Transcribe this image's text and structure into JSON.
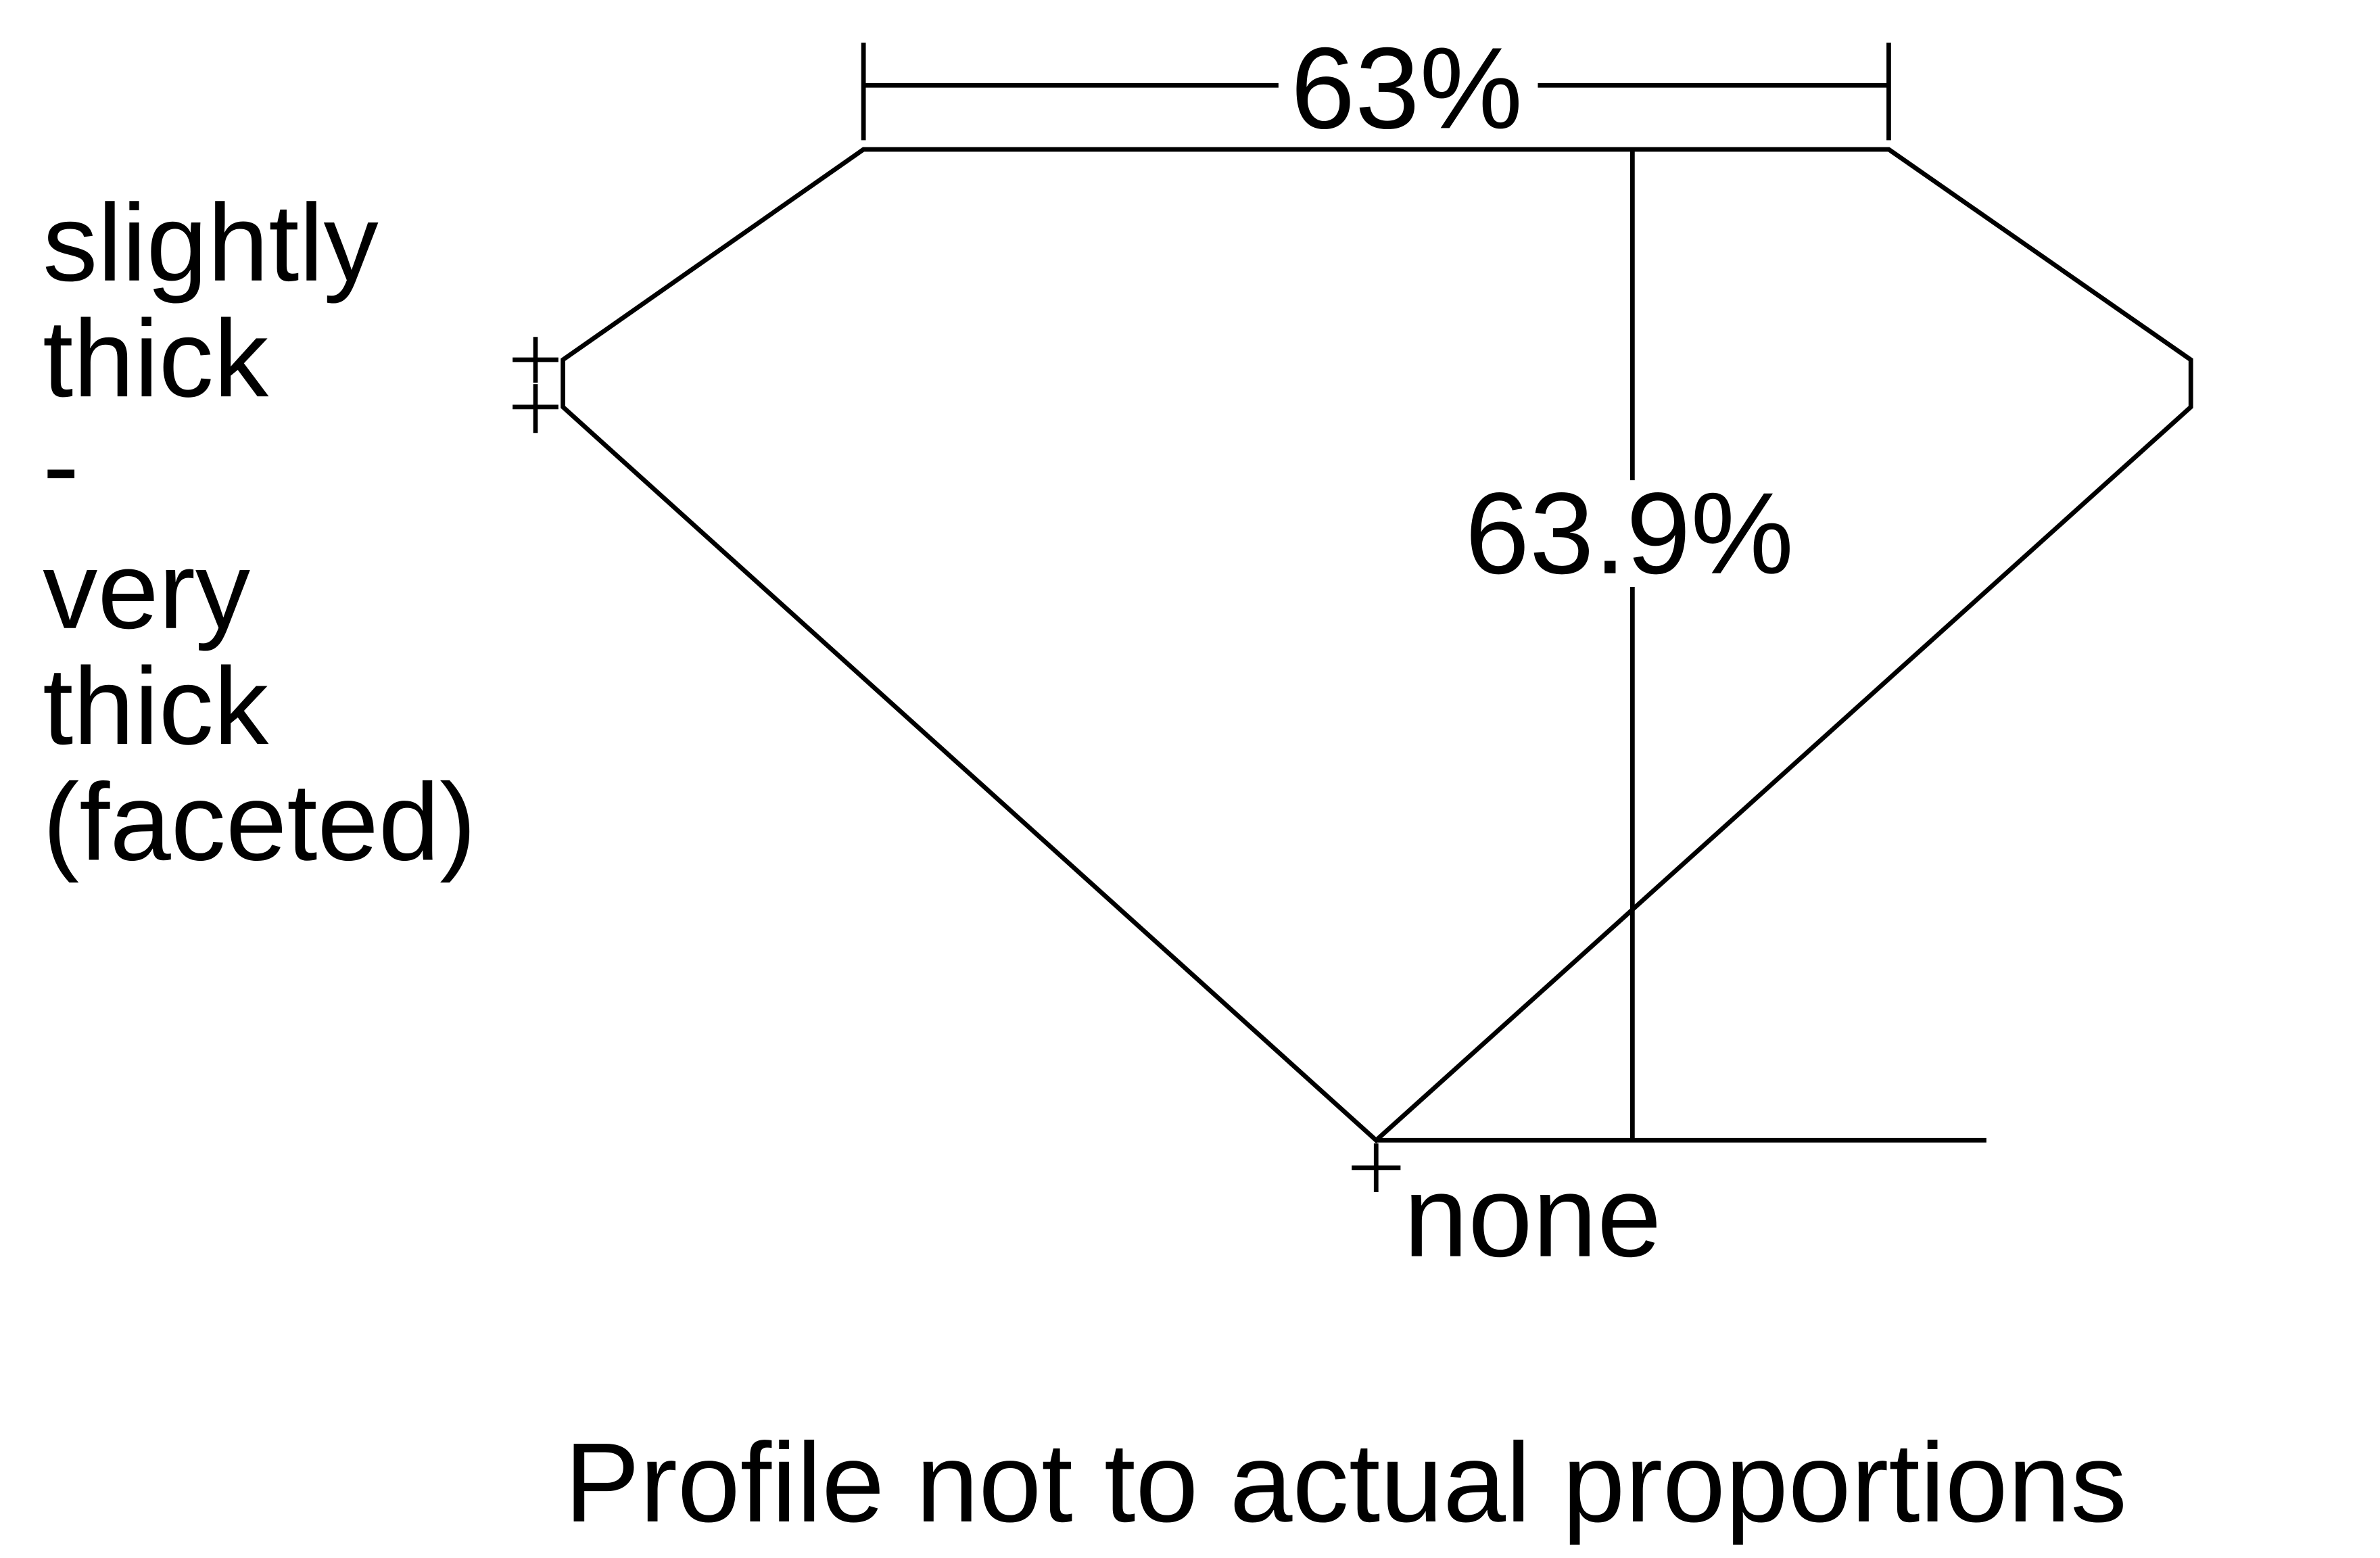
{
  "diagram": {
    "table_percent": "63%",
    "depth_percent": "63.9%",
    "culet": "none",
    "girdle_lines": [
      "slightly",
      "thick",
      "-",
      "very",
      "thick",
      "(faceted)"
    ],
    "footnote": "Profile not to actual proportions",
    "line_color": "#000000",
    "background_color": "#ffffff"
  }
}
